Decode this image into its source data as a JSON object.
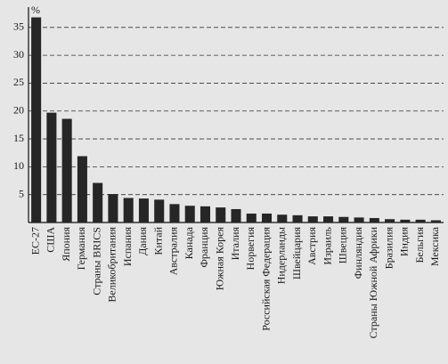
{
  "chart_data": {
    "type": "bar",
    "y_label": "%",
    "categories": [
      "ЕС-27",
      "США",
      "Япония",
      "Германия",
      "Страны BRICS",
      "Великобритания",
      "Испания",
      "Дания",
      "Китай",
      "Австралия",
      "Канада",
      "Франция",
      "Южная Корея",
      "Италия",
      "Норвегия",
      "Российская Федерация",
      "Нидерланды",
      "Швейцария",
      "Австрия",
      "Израиль",
      "Швеция",
      "Финляндия",
      "Страны Южной Африки",
      "Бразилия",
      "Индия",
      "Бельгия",
      "Мексика"
    ],
    "values": [
      36.8,
      19.7,
      18.6,
      11.9,
      7.1,
      5.1,
      4.4,
      4.3,
      4.1,
      3.3,
      3.0,
      2.9,
      2.7,
      2.4,
      1.6,
      1.6,
      1.4,
      1.3,
      1.1,
      1.1,
      1.0,
      0.9,
      0.8,
      0.6,
      0.5,
      0.5,
      0.4
    ],
    "color": "#262626",
    "ylim": [
      0,
      38
    ],
    "yticks": [
      5,
      10,
      15,
      20,
      25,
      30,
      35
    ],
    "grid": true
  }
}
